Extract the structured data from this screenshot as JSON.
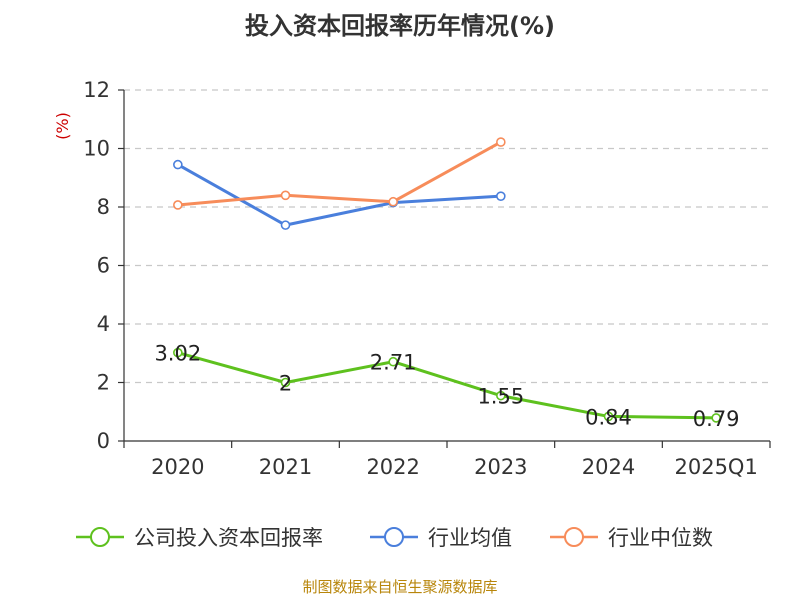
{
  "chart_data": {
    "type": "line",
    "title": "投入资本回报率历年情况(%)",
    "ylabel": "(%)",
    "ylim": [
      0,
      12
    ],
    "yticks": [
      0,
      2,
      4,
      6,
      8,
      10,
      12
    ],
    "categories": [
      "2020",
      "2021",
      "2022",
      "2023",
      "2024",
      "2025Q1"
    ],
    "grid": true,
    "legend_position": "bottom",
    "series": [
      {
        "name": "公司投入资本回报率",
        "color": "#5ec11e",
        "values": [
          3.02,
          2,
          2.71,
          1.55,
          0.84,
          0.79
        ],
        "labels": [
          "3.02",
          "2",
          "2.71",
          "1.55",
          "0.84",
          "0.79"
        ]
      },
      {
        "name": "行业均值",
        "color": "#4a7fdc",
        "values": [
          9.45,
          7.38,
          8.15,
          8.37,
          null,
          null
        ]
      },
      {
        "name": "行业中位数",
        "color": "#f78c5a",
        "values": [
          8.07,
          8.4,
          8.18,
          10.22,
          null,
          null
        ]
      }
    ]
  },
  "source": "制图数据来自恒生聚源数据库"
}
